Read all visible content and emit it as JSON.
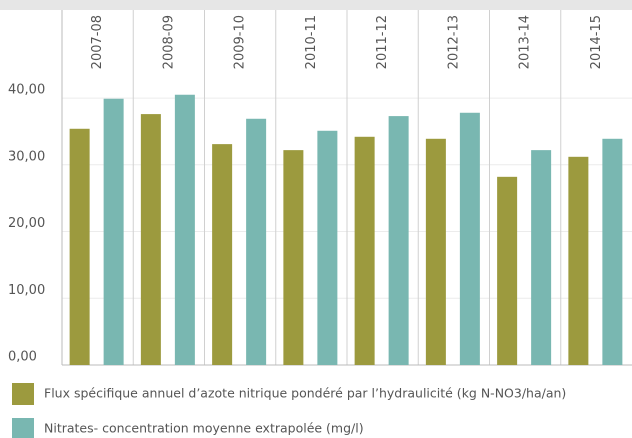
{
  "chart_data": {
    "type": "bar",
    "categories": [
      "2007-08",
      "2008-09",
      "2009-10",
      "2010-11",
      "2011-12",
      "2012-13",
      "2013-14",
      "2014-15"
    ],
    "series": [
      {
        "name": "Flux spécifique annuel d’azote nitrique pondéré par l’hydraulicité (kg N-NO3/ha/an)",
        "color": "#9c9a3e",
        "values": [
          35.4,
          37.6,
          33.1,
          32.2,
          34.2,
          33.9,
          28.2,
          31.2
        ]
      },
      {
        "name": "Nitrates- concentration moyenne extrapolée (mg/l)",
        "color": "#79b7b1",
        "values": [
          39.9,
          40.5,
          36.9,
          35.1,
          37.3,
          37.8,
          32.2,
          33.9
        ]
      }
    ],
    "ylim": [
      0,
      53.2
    ],
    "yticks": [
      {
        "value": 0,
        "label": "0,00"
      },
      {
        "value": 10,
        "label": "10,00"
      },
      {
        "value": 20,
        "label": "20,00"
      },
      {
        "value": 30,
        "label": "30,00"
      },
      {
        "value": 40,
        "label": "40,00"
      }
    ],
    "grid": true
  }
}
